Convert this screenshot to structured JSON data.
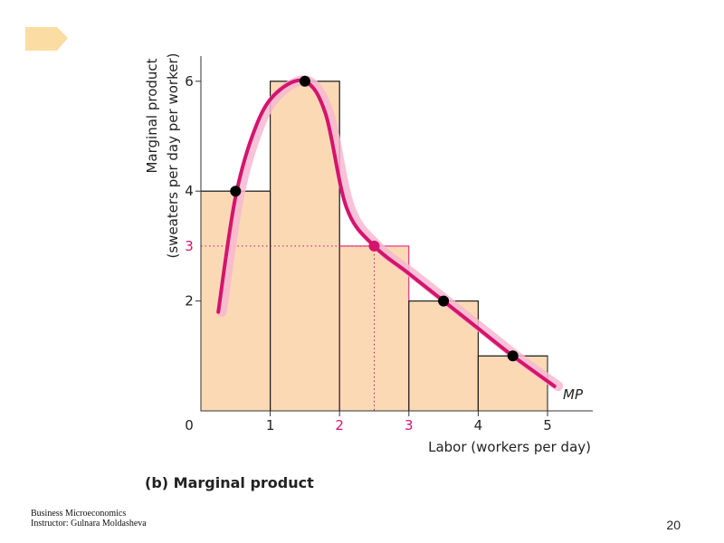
{
  "colors": {
    "bar_fill": "#fcd9b5",
    "bar_edge": "#1a1a1a",
    "curve": "#d4146e",
    "curve_glow": "#f7b7d1",
    "highlight": "#d4146e",
    "deco": "#fbdca2"
  },
  "chart_data": {
    "type": "bar",
    "title": "(b) Marginal product",
    "xlabel": "Labor (workers per day)",
    "ylabel_line1": "Marginal product",
    "ylabel_line2": "(sweaters per day per worker)",
    "xlim": [
      0,
      5.7
    ],
    "ylim": [
      0,
      6.5
    ],
    "x_ticks": [
      "0",
      "1",
      "2",
      "3",
      "4",
      "5"
    ],
    "y_ticks": [
      {
        "value": 2,
        "label": "2",
        "highlight": false
      },
      {
        "value": 3,
        "label": "3",
        "highlight": true
      },
      {
        "value": 4,
        "label": "4",
        "highlight": false
      },
      {
        "value": 6,
        "label": "6",
        "highlight": false
      }
    ],
    "highlighted_x_ticks": [
      "2",
      "3"
    ],
    "bars": [
      {
        "x0": 0,
        "x1": 1,
        "value": 4,
        "highlight": false
      },
      {
        "x0": 1,
        "x1": 2,
        "value": 6,
        "highlight": false
      },
      {
        "x0": 2,
        "x1": 3,
        "value": 3,
        "highlight": true
      },
      {
        "x0": 3,
        "x1": 4,
        "value": 2,
        "highlight": false
      },
      {
        "x0": 4,
        "x1": 5,
        "value": 1,
        "highlight": false
      }
    ],
    "curve_label": "MP",
    "curve": [
      [
        0.25,
        1.8
      ],
      [
        0.5,
        3.9
      ],
      [
        0.8,
        5.2
      ],
      [
        1.1,
        5.8
      ],
      [
        1.5,
        6.0
      ],
      [
        1.8,
        5.4
      ],
      [
        2.1,
        3.7
      ],
      [
        2.5,
        3.0
      ],
      [
        3.0,
        2.5
      ],
      [
        3.5,
        2.0
      ],
      [
        4.0,
        1.5
      ],
      [
        4.5,
        1.0
      ],
      [
        5.1,
        0.45
      ]
    ],
    "points": [
      {
        "x": 0.5,
        "y": 4,
        "highlight": false
      },
      {
        "x": 1.5,
        "y": 6,
        "highlight": false
      },
      {
        "x": 2.5,
        "y": 3,
        "highlight": true
      },
      {
        "x": 3.5,
        "y": 2,
        "highlight": false
      },
      {
        "x": 4.5,
        "y": 1,
        "highlight": false
      }
    ],
    "guide": {
      "x": 2.5,
      "y": 3
    }
  },
  "footer": {
    "line1": "Business Microeconomics",
    "line2": "Instructor: Gulnara Moldasheva"
  },
  "page_number": "20"
}
